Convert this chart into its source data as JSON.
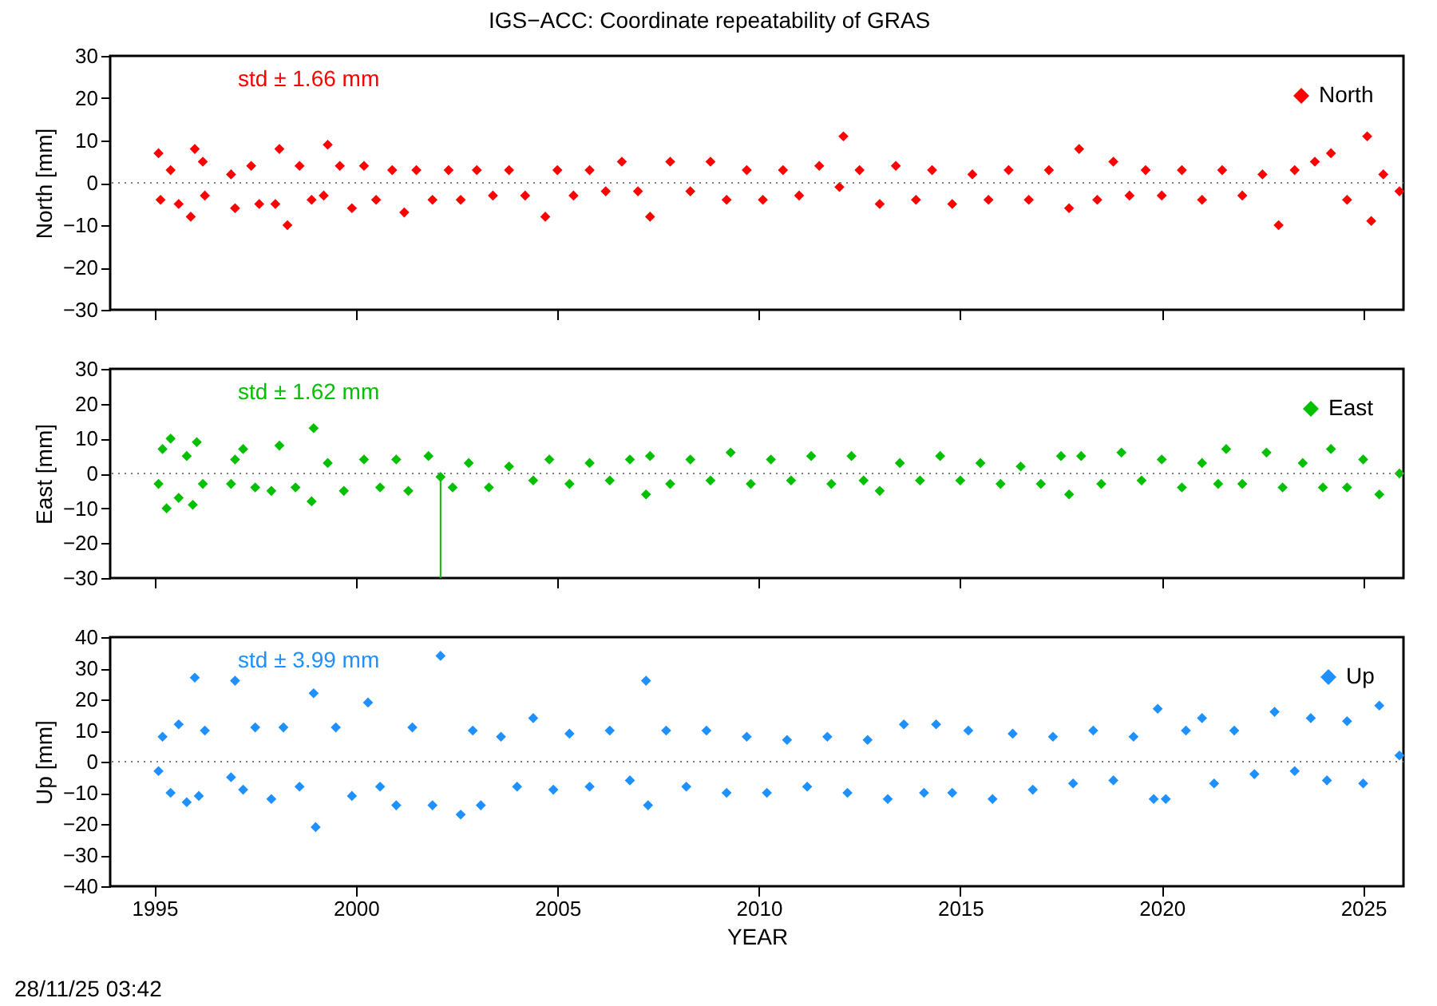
{
  "chart_data": [
    {
      "type": "scatter",
      "title": "IGS−ACC: Coordinate repeatability of GRAS",
      "ylabel": "North [mm]",
      "annotations": [
        "std ± 1.66 mm"
      ],
      "xlim": [
        1993.9,
        2026
      ],
      "xticks": [
        1995,
        2000,
        2005,
        2010,
        2015,
        2020,
        2025
      ],
      "ylim": [
        -30,
        30
      ],
      "yticks": [
        -30,
        -20,
        -10,
        0,
        10,
        20,
        30
      ],
      "tick_labels": "y",
      "legend": "top right",
      "marker": "diamond",
      "ref_lines": [
        {
          "axis": "y",
          "value": 0,
          "line_style": "dotted",
          "color": "#808080"
        }
      ],
      "series": [
        {
          "name": "North",
          "color": "#ff0000",
          "x": [
            1995.1,
            1995.15,
            1995.4,
            1995.6,
            1995.9,
            1996.0,
            1996.2,
            1996.25,
            1996.9,
            1997.0,
            1997.4,
            1997.6,
            1998.0,
            1998.1,
            1998.3,
            1998.6,
            1998.9,
            1999.2,
            1999.3,
            1999.6,
            1999.9,
            2000.2,
            2000.5,
            2000.9,
            2001.2,
            2001.5,
            2001.9,
            2002.3,
            2002.6,
            2003.0,
            2003.4,
            2003.8,
            2004.2,
            2004.7,
            2005.0,
            2005.4,
            2005.8,
            2006.2,
            2006.6,
            2007.0,
            2007.3,
            2007.8,
            2008.3,
            2008.8,
            2009.2,
            2009.7,
            2010.1,
            2010.6,
            2011.0,
            2011.5,
            2012.0,
            2012.1,
            2012.5,
            2013.0,
            2013.4,
            2013.9,
            2014.3,
            2014.8,
            2015.3,
            2015.7,
            2016.2,
            2016.7,
            2017.2,
            2017.7,
            2017.95,
            2018.4,
            2018.8,
            2019.2,
            2019.6,
            2020.0,
            2020.5,
            2021.0,
            2021.5,
            2022.0,
            2022.5,
            2022.9,
            2023.3,
            2023.8,
            2024.2,
            2024.6,
            2025.1,
            2025.2,
            2025.5,
            2025.9
          ],
          "values": [
            7,
            -4,
            3,
            -5,
            -8,
            8,
            5,
            -3,
            2,
            -6,
            4,
            -5,
            -5,
            8,
            -10,
            4,
            -4,
            -3,
            9,
            4,
            -6,
            4,
            -4,
            3,
            -7,
            3,
            -4,
            3,
            -4,
            3,
            -3,
            3,
            -3,
            -8,
            3,
            -3,
            3,
            -2,
            5,
            -2,
            -8,
            5,
            -2,
            5,
            -4,
            3,
            -4,
            3,
            -3,
            4,
            -1,
            11,
            3,
            -5,
            4,
            -4,
            3,
            -5,
            2,
            -4,
            3,
            -4,
            3,
            -6,
            8,
            -4,
            5,
            -3,
            3,
            -3,
            3,
            -4,
            3,
            -3,
            2,
            -10,
            3,
            5,
            7,
            -4,
            11,
            -9,
            2,
            -2
          ]
        }
      ]
    },
    {
      "type": "scatter",
      "ylabel": "East [mm]",
      "annotations": [
        "std ± 1.62 mm"
      ],
      "xlim": [
        1993.9,
        2026
      ],
      "xticks": [
        1995,
        2000,
        2005,
        2010,
        2015,
        2020,
        2025
      ],
      "ylim": [
        -30,
        30
      ],
      "yticks": [
        -30,
        -20,
        -10,
        0,
        10,
        20,
        30
      ],
      "tick_labels": "y",
      "legend": "top right",
      "marker": "diamond",
      "ref_lines": [
        {
          "axis": "y",
          "value": 0,
          "line_style": "dotted",
          "color": "#808080"
        }
      ],
      "series": [
        {
          "name": "East",
          "color": "#00c000",
          "x": [
            1995.1,
            1995.2,
            1995.3,
            1995.4,
            1995.6,
            1995.8,
            1995.95,
            1996.05,
            1996.2,
            1996.9,
            1997.0,
            1997.2,
            1997.5,
            1997.9,
            1998.1,
            1998.5,
            1998.9,
            1998.95,
            1999.3,
            1999.7,
            2000.2,
            2000.6,
            2001.0,
            2001.3,
            2001.8,
            2002.1,
            2002.4,
            2002.8,
            2003.3,
            2003.8,
            2004.4,
            2004.8,
            2005.3,
            2005.8,
            2006.3,
            2006.8,
            2007.2,
            2007.3,
            2007.8,
            2008.3,
            2008.8,
            2009.3,
            2009.8,
            2010.3,
            2010.8,
            2011.3,
            2011.8,
            2012.3,
            2012.6,
            2013.0,
            2013.5,
            2014.0,
            2014.5,
            2015.0,
            2015.5,
            2016.0,
            2016.5,
            2017.0,
            2017.5,
            2017.7,
            2018.0,
            2018.5,
            2019.0,
            2019.5,
            2020.0,
            2020.5,
            2021.0,
            2021.4,
            2021.6,
            2022.0,
            2022.6,
            2023.0,
            2023.5,
            2024.0,
            2024.2,
            2024.6,
            2025.0,
            2025.4,
            2025.9
          ],
          "values": [
            -3,
            7,
            -10,
            10,
            -7,
            5,
            -9,
            9,
            -3,
            -3,
            4,
            7,
            -4,
            -5,
            8,
            -4,
            -8,
            13,
            3,
            -5,
            4,
            -4,
            4,
            -5,
            5,
            -1,
            -4,
            3,
            -4,
            2,
            -2,
            4,
            -3,
            3,
            -2,
            4,
            -6,
            5,
            -3,
            4,
            -2,
            6,
            -3,
            4,
            -2,
            5,
            -3,
            5,
            -2,
            -5,
            3,
            -2,
            5,
            -2,
            3,
            -3,
            2,
            -3,
            5,
            -6,
            5,
            -3,
            6,
            -2,
            4,
            -4,
            3,
            -3,
            7,
            -3,
            6,
            -4,
            3,
            -4,
            7,
            -4,
            4,
            -6,
            0
          ],
          "errors": [
            null,
            null,
            null,
            null,
            null,
            null,
            null,
            null,
            null,
            null,
            null,
            null,
            null,
            null,
            null,
            null,
            null,
            null,
            null,
            null,
            null,
            null,
            null,
            null,
            null,
            [
              -30,
              -1
            ],
            null,
            null,
            null,
            null,
            null,
            null,
            null,
            null,
            null,
            null,
            null,
            null,
            null,
            null,
            null,
            null,
            null,
            null,
            null,
            null,
            null,
            null,
            null,
            null,
            null,
            null,
            null,
            null,
            null,
            null,
            null,
            null,
            null,
            null,
            null,
            null,
            null,
            null,
            null,
            null,
            null,
            null,
            null,
            null,
            null,
            null,
            null,
            null,
            null,
            null,
            null,
            null,
            null
          ]
        }
      ]
    },
    {
      "type": "scatter",
      "xlabel": "YEAR",
      "ylabel": "Up [mm]",
      "annotations": [
        "std ± 3.99 mm",
        "28/11/25 03:42"
      ],
      "xlim": [
        1993.9,
        2026
      ],
      "xticks": [
        1995,
        2000,
        2005,
        2010,
        2015,
        2020,
        2025
      ],
      "ylim": [
        -40,
        40
      ],
      "yticks": [
        -40,
        -30,
        -20,
        -10,
        0,
        10,
        20,
        30,
        40
      ],
      "legend": "top right",
      "marker": "diamond",
      "ref_lines": [
        {
          "axis": "y",
          "value": 0,
          "line_style": "dotted",
          "color": "#808080"
        }
      ],
      "series": [
        {
          "name": "Up",
          "color": "#1e90ff",
          "x": [
            1995.1,
            1995.2,
            1995.4,
            1995.6,
            1995.8,
            1996.0,
            1996.1,
            1996.25,
            1996.9,
            1997.0,
            1997.2,
            1997.5,
            1997.9,
            1998.2,
            1998.6,
            1998.95,
            1999.0,
            1999.5,
            1999.9,
            2000.3,
            2000.6,
            2001.0,
            2001.4,
            2001.9,
            2002.1,
            2002.6,
            2002.9,
            2003.1,
            2003.6,
            2004.0,
            2004.4,
            2004.9,
            2005.3,
            2005.8,
            2006.3,
            2006.8,
            2007.2,
            2007.25,
            2007.7,
            2008.2,
            2008.7,
            2009.2,
            2009.7,
            2010.2,
            2010.7,
            2011.2,
            2011.7,
            2012.2,
            2012.7,
            2013.2,
            2013.6,
            2014.1,
            2014.4,
            2014.8,
            2015.2,
            2015.8,
            2016.3,
            2016.8,
            2017.3,
            2017.8,
            2018.3,
            2018.8,
            2019.3,
            2019.8,
            2019.9,
            2020.1,
            2020.6,
            2021.0,
            2021.3,
            2021.8,
            2022.3,
            2022.8,
            2023.3,
            2023.7,
            2024.1,
            2024.6,
            2025.0,
            2025.4,
            2025.9
          ],
          "values": [
            -3,
            8,
            -10,
            12,
            -13,
            27,
            -11,
            10,
            -5,
            26,
            -9,
            11,
            -12,
            11,
            -8,
            22,
            -21,
            11,
            -11,
            19,
            -8,
            -14,
            11,
            -14,
            34,
            -17,
            10,
            -14,
            8,
            -8,
            14,
            -9,
            9,
            -8,
            10,
            -6,
            26,
            -14,
            10,
            -8,
            10,
            -10,
            8,
            -10,
            7,
            -8,
            8,
            -10,
            7,
            -12,
            12,
            -10,
            12,
            -10,
            10,
            -12,
            9,
            -9,
            8,
            -7,
            10,
            -6,
            8,
            -12,
            17,
            -12,
            10,
            14,
            -7,
            10,
            -4,
            16,
            -3,
            14,
            -6,
            13,
            -7,
            18,
            2
          ]
        }
      ]
    }
  ]
}
